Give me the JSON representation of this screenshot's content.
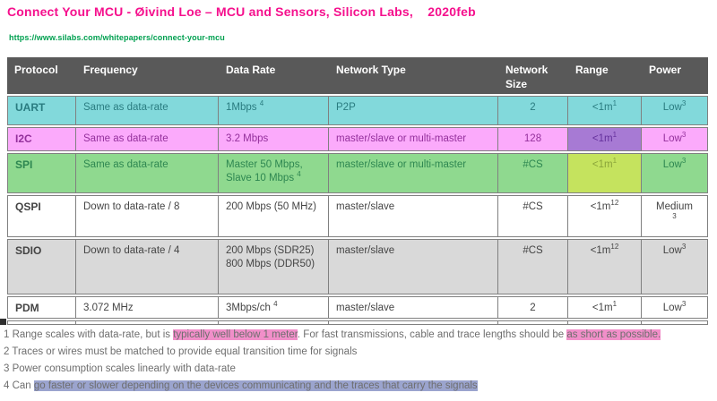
{
  "header": {
    "title": "Connect Your MCU - Øivind Loe – MCU and Sensors, Silicon Labs,    2020feb",
    "title_color": "#f5108d",
    "url": "https://www.silabs.com/whitepapers/connect-your-mcu",
    "url_color": "#00a050"
  },
  "table": {
    "columns": [
      "Protocol",
      "Frequency",
      "Data Rate",
      "Network Type",
      "Network Size",
      "Range",
      "Power"
    ],
    "header_bg": "#595959",
    "header_fg": "#ffffff",
    "border_color": "#808080",
    "rows": [
      {
        "cells": [
          "UART",
          "Same as data-rate",
          "1Mbps ^4^",
          "P2P",
          "2",
          "<1m^1^",
          "Low^3^"
        ],
        "bg": "#82d9db",
        "fg": "#2a7c80",
        "range_bg": null,
        "range_fg": null
      },
      {
        "cells": [
          "I2C",
          "Same as data-rate",
          "3.2 Mbps",
          "master/slave or multi-master",
          "128",
          "<1m^1^",
          "Low^3^"
        ],
        "bg": "#fbaafb",
        "fg": "#94309c",
        "range_bg": "#a77ad4",
        "range_fg": "#64309c"
      },
      {
        "cells": [
          "SPI",
          "Same as data-rate",
          "Master 50 Mbps,\nSlave 10 Mbps ^4^",
          "master/slave or multi-master",
          "#CS",
          "<1m^1^",
          "Low^3^"
        ],
        "bg": "#8fd98f",
        "fg": "#2e8751",
        "range_bg": "#c5e35e",
        "range_fg": "#8aa43a"
      },
      {
        "cells": [
          "QSPI",
          "Down to data-rate / 8",
          "200 Mbps (50 MHz)",
          "master/slave",
          "#CS",
          "<1m^12^",
          "Medium\n^3^"
        ],
        "bg": "#ffffff",
        "fg": "#444444",
        "range_bg": null,
        "range_fg": null
      },
      {
        "cells": [
          "SDIO",
          "Down to data-rate / 4",
          "200 Mbps (SDR25) 800 Mbps (DDR50)",
          "master/slave",
          "#CS",
          "<1m^12^",
          "Low^3^"
        ],
        "bg": "#d9d9d9",
        "fg": "#444444",
        "range_bg": null,
        "range_fg": null
      },
      {
        "cells": [
          "PDM",
          "3.072 MHz",
          "3Mbps/ch ^4^",
          "master/slave",
          "2",
          "<1m^1^",
          "Low^3^"
        ],
        "bg": "#ffffff",
        "fg": "#444444",
        "range_bg": null,
        "range_fg": null
      }
    ]
  },
  "footnotes": {
    "highlight_pink": "#f18fc9",
    "highlight_blue": "#9ba4ce",
    "items": [
      {
        "segments": [
          {
            "text": "1 Range scales with data-rate, but is "
          },
          {
            "text": "typically well below 1 meter",
            "hl": "pink"
          },
          {
            "text": ". For fast transmissions, cable and trace lengths should be "
          },
          {
            "text": "as short as possible.",
            "hl": "pink"
          }
        ]
      },
      {
        "segments": [
          {
            "text": "2 Traces or wires must be matched to provide equal transition time for signals"
          }
        ]
      },
      {
        "segments": [
          {
            "text": "3 Power consumption scales linearly with data-rate"
          }
        ]
      },
      {
        "segments": [
          {
            "text": "4 Can "
          },
          {
            "text": "go faster or slower depending on the devices communicating and the traces that carry the signals",
            "hl": "blue"
          }
        ]
      }
    ]
  }
}
